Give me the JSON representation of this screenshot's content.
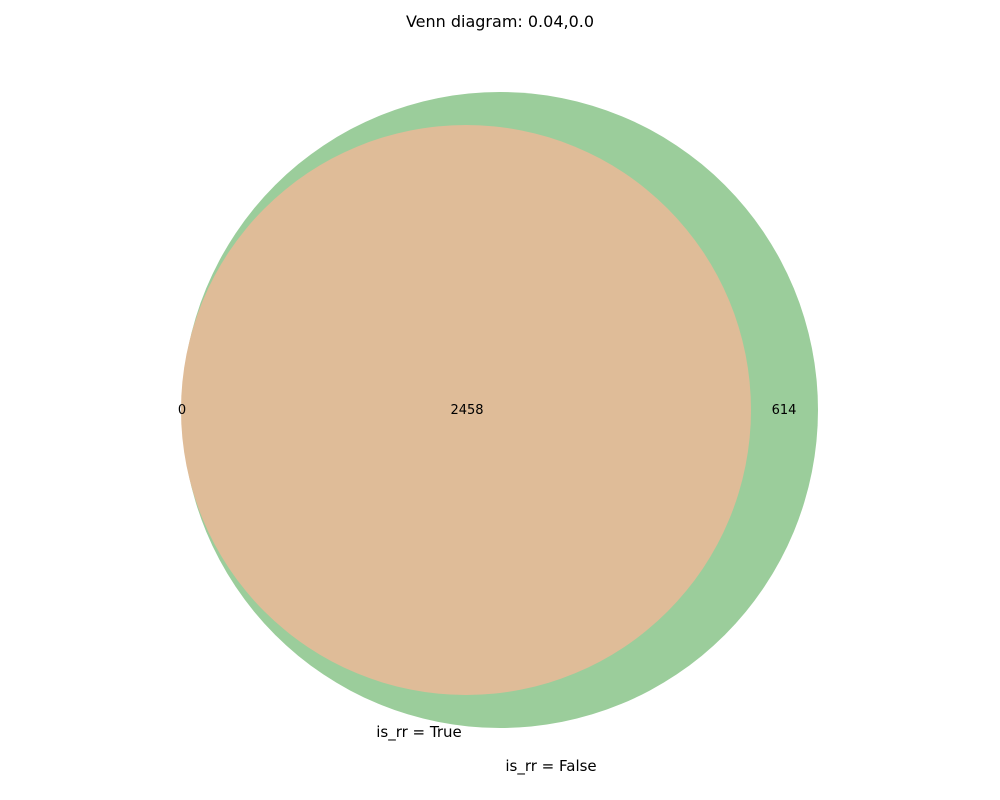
{
  "chart_data": {
    "type": "venn",
    "title": "Venn diagram: 0.04,0.0",
    "sets": [
      {
        "name": "is_rr = True",
        "color": "#dfbc98"
      },
      {
        "name": "is_rr = False",
        "color": "#9bcd9b"
      }
    ],
    "regions": {
      "only_true": "0",
      "intersection": "2458",
      "only_false": "614"
    }
  }
}
